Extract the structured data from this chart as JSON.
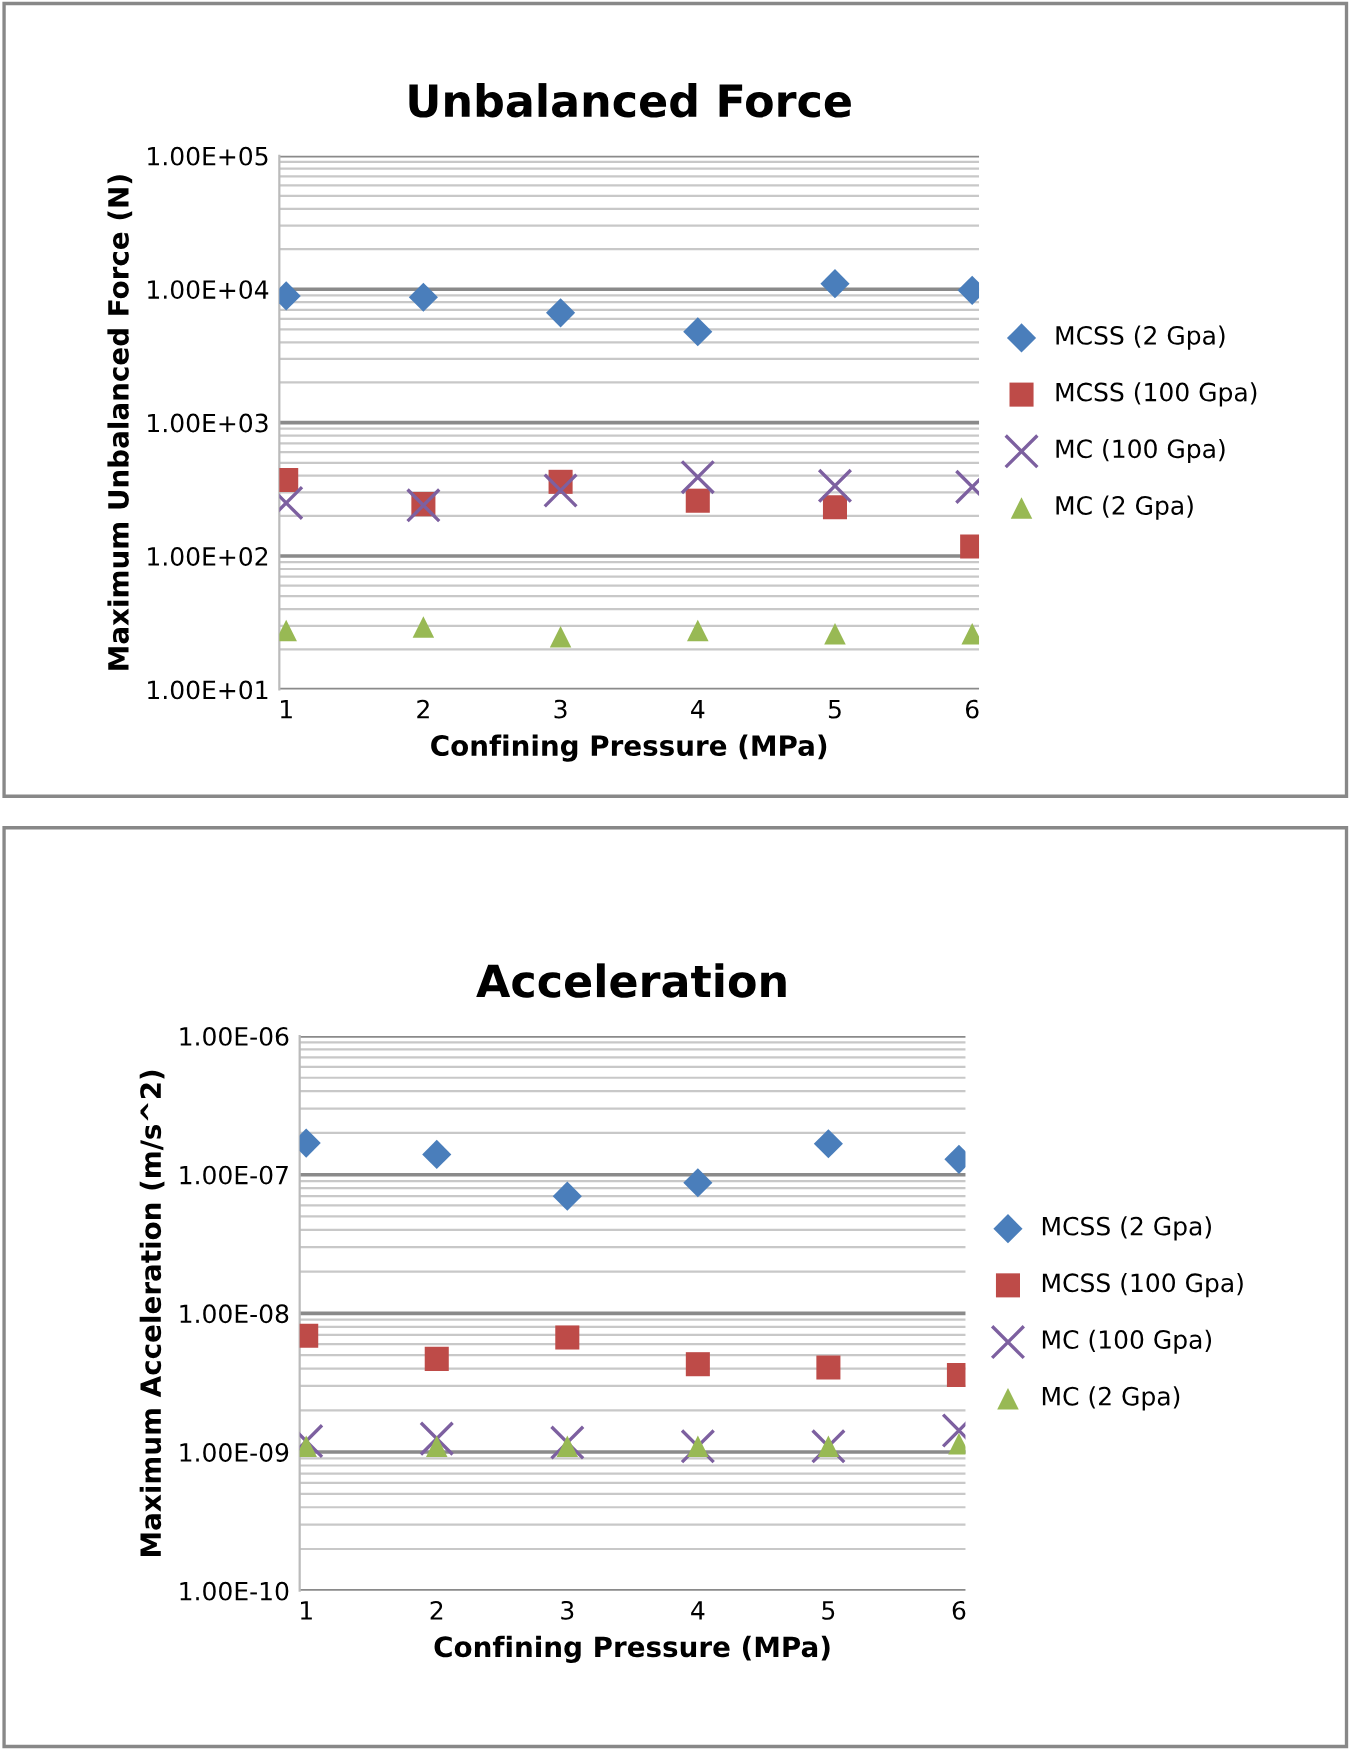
{
  "chart_data": [
    {
      "type": "scatter",
      "title": "Unbalanced Force",
      "xlabel": "Confining Pressure (MPa)",
      "ylabel": "Maximum Unbalanced Force (N)",
      "log": "y",
      "grid": "y",
      "legend": "right",
      "categories": [
        "1",
        "2",
        "3",
        "4",
        "5",
        "6"
      ],
      "ylim": [
        10,
        100000
      ],
      "yticks": [
        {
          "value": 10,
          "label": "1.00E+01"
        },
        {
          "value": 100,
          "label": "1.00E+02"
        },
        {
          "value": 1000,
          "label": "1.00E+03"
        },
        {
          "value": 10000,
          "label": "1.00E+04"
        },
        {
          "value": 100000,
          "label": "1.00E+05"
        }
      ],
      "series": [
        {
          "name": "MCSS (2 Gpa)",
          "color": "#4a7ebb",
          "marker": "diamond",
          "values": [
            8900,
            8700,
            6650,
            4800,
            11000,
            9800
          ]
        },
        {
          "name": "MCSS (100 Gpa)",
          "color": "#be4b48",
          "marker": "square",
          "values": [
            372,
            245,
            360,
            260,
            232,
            118
          ]
        },
        {
          "name": "MC (100 Gpa)",
          "color": "#7d60a0",
          "marker": "cross",
          "values": [
            250,
            240,
            310,
            390,
            336,
            330
          ]
        },
        {
          "name": "MC (2 Gpa)",
          "color": "#98b954",
          "marker": "triangle",
          "values": [
            27.7,
            29.4,
            24.8,
            27.7,
            26.2,
            26.2
          ]
        }
      ]
    },
    {
      "type": "scatter",
      "title": "Acceleration",
      "xlabel": "Confining Pressure (MPa)",
      "ylabel": "Maximum Acceleration (m/s^2)",
      "log": "y",
      "grid": "y",
      "legend": "right",
      "categories": [
        "1",
        "2",
        "3",
        "4",
        "5",
        "6"
      ],
      "ylim": [
        1e-10,
        1e-06
      ],
      "yticks": [
        {
          "value": 1e-10,
          "label": "1.00E-10"
        },
        {
          "value": 1e-09,
          "label": "1.00E-09"
        },
        {
          "value": 1e-08,
          "label": "1.00E-08"
        },
        {
          "value": 1e-07,
          "label": "1.00E-07"
        },
        {
          "value": 1e-06,
          "label": "1.00E-06"
        }
      ],
      "series": [
        {
          "name": "MCSS (2 Gpa)",
          "color": "#4a7ebb",
          "marker": "diamond",
          "values": [
            1.69e-07,
            1.4e-07,
            7e-08,
            8.75e-08,
            1.67e-07,
            1.29e-07
          ]
        },
        {
          "name": "MCSS (100 Gpa)",
          "color": "#be4b48",
          "marker": "square",
          "values": [
            6.9e-09,
            4.7e-09,
            6.7e-09,
            4.3e-09,
            4.07e-09,
            3.6e-09
          ]
        },
        {
          "name": "MC (100 Gpa)",
          "color": "#7d60a0",
          "marker": "cross",
          "values": [
            1.2e-09,
            1.25e-09,
            1.17e-09,
            1.1e-09,
            1.1e-09,
            1.43e-09
          ]
        },
        {
          "name": "MC (2 Gpa)",
          "color": "#98b954",
          "marker": "triangle",
          "values": [
            1.1e-09,
            1.1e-09,
            1.1e-09,
            1.1e-09,
            1.1e-09,
            1.15e-09
          ]
        }
      ]
    }
  ]
}
